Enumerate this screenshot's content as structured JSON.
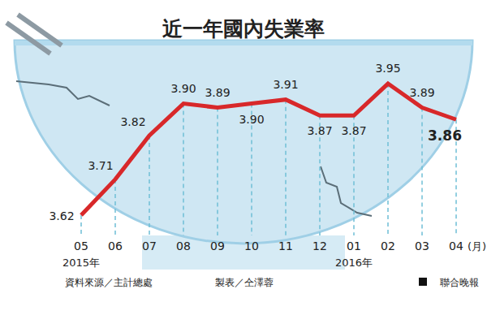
{
  "chart_data": {
    "type": "line",
    "title": "近一年國內失業率",
    "categories": [
      "05",
      "06",
      "07",
      "08",
      "09",
      "10",
      "11",
      "12",
      "01",
      "02",
      "03",
      "04"
    ],
    "values": [
      3.62,
      3.71,
      3.82,
      3.9,
      3.89,
      3.9,
      3.91,
      3.87,
      3.87,
      3.95,
      3.89,
      3.86
    ],
    "value_labels": [
      "3.62",
      "3.71",
      "3.82",
      "3.90",
      "3.89",
      "3.90",
      "3.91",
      "3.87",
      "3.87",
      "3.95",
      "3.89",
      "3.86"
    ],
    "color": "#d8282a",
    "ylim": [
      3.5,
      4.0
    ],
    "data_labels": true,
    "tick_labels": "x",
    "x_label": "(月)",
    "annotations": [
      {
        "text": "2015年",
        "category": "05"
      },
      {
        "text": "2016年",
        "category": "01"
      }
    ],
    "source": "資料來源／主計總處",
    "credit": "製表／仝澤蓉",
    "publisher": "聯合晚報"
  }
}
